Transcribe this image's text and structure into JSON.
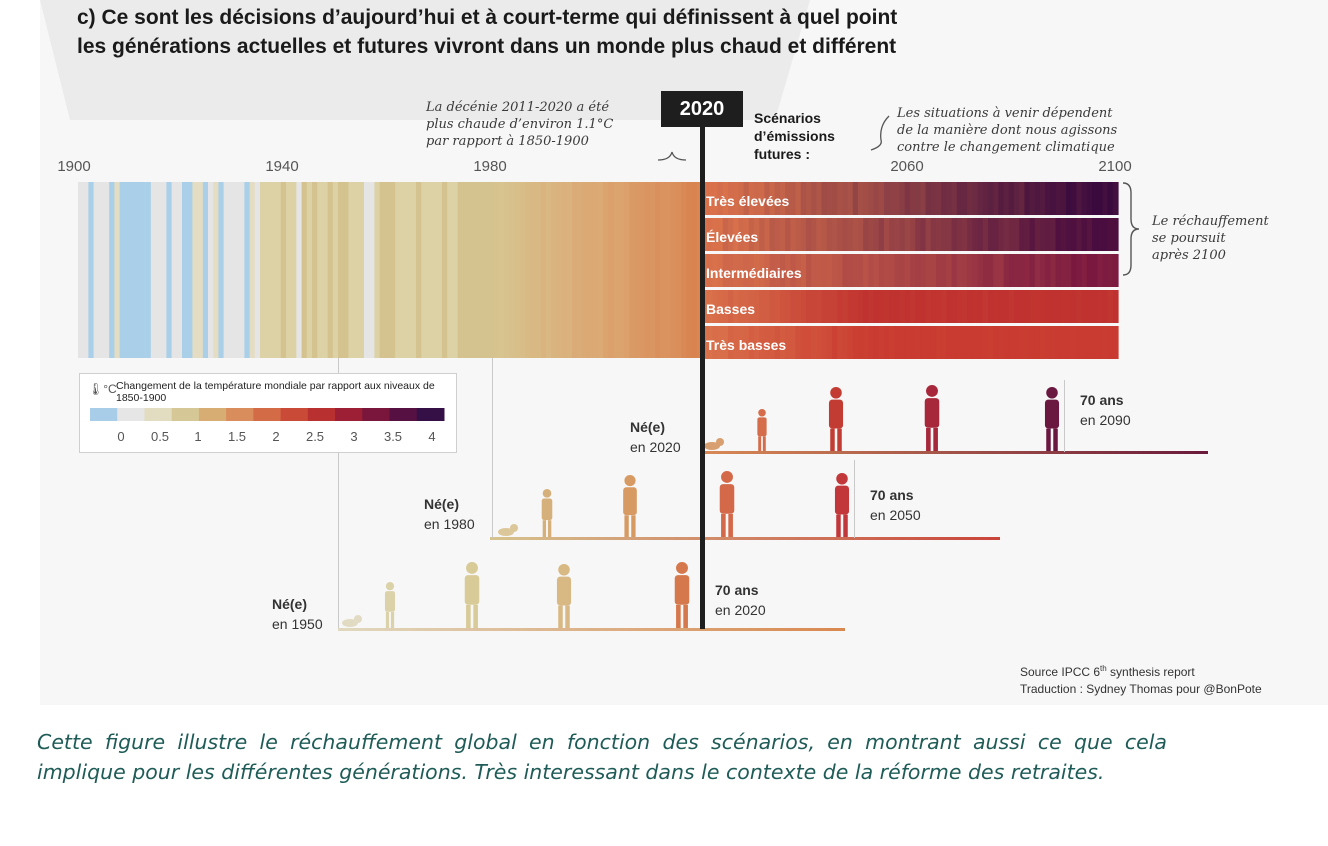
{
  "title": {
    "line1": "c) Ce sont les décisions d’aujourd’hui et à court-terme qui définissent à quel point",
    "line2": "les générations actuelles et futures vivront dans un monde plus chaud et différent"
  },
  "timeline": {
    "year_ticks": [
      "1900",
      "1940",
      "1980",
      "2060",
      "2100"
    ],
    "current_year": "2020"
  },
  "annotations": {
    "decade": [
      "La décénie 2011-2020 a été",
      "plus chaude d’environ 1.1°C",
      "par rapport à 1850-1900"
    ],
    "situations": [
      "Les situations à venir dépendent",
      "de la manière dont nous agissons",
      "contre le changement climatique"
    ],
    "warming": [
      "Le réchauffement",
      "se poursuit",
      "après 2100"
    ]
  },
  "scenarios": {
    "title": "Scénarios\nd’émissions\nfutures :",
    "items": [
      {
        "label": "Très élevées",
        "end_color": "#3a0a3e"
      },
      {
        "label": "Élevées",
        "end_color": "#4a0d3f"
      },
      {
        "label": "Intermédiaires",
        "end_color": "#7a1840"
      },
      {
        "label": "Basses",
        "end_color": "#c0322f"
      },
      {
        "label": "Très basses",
        "end_color": "#c93a30"
      }
    ]
  },
  "legend": {
    "icon": "thermometer-icon",
    "unit": "°C",
    "title": "Changement de la température mondiale par rapport aux niveaux de 1850-1900",
    "ticks": [
      "0",
      "0.5",
      "1",
      "1.5",
      "2",
      "2.5",
      "3",
      "3.5",
      "4"
    ],
    "colors": [
      "#a7cde8",
      "#e6e6e6",
      "#e2dcc1",
      "#d6c896",
      "#d8ad74",
      "#d98c5c",
      "#d36b47",
      "#c94a37",
      "#b8302f",
      "#9c1f35",
      "#7a153b",
      "#561041",
      "#351046"
    ]
  },
  "generations": [
    {
      "born": "Né(e)",
      "year": "en 2020",
      "age": "70 ans",
      "age_year": "en 2090"
    },
    {
      "born": "Né(e)",
      "year": "en 1980",
      "age": "70 ans",
      "age_year": "en 2050"
    },
    {
      "born": "Né(e)",
      "year": "en 1950",
      "age": "70 ans",
      "age_year": "en 2020"
    }
  ],
  "source": {
    "line1": "Source IPCC 6",
    "sup": "th",
    "line1_end": " synthesis report",
    "line2": "Traduction : Sydney Thomas pour @BonPote"
  },
  "caption": "Cette figure illustre le réchauffement global en fonction des scénarios, en montrant aussi ce que cela implique pour les différentes générations. Très interessant dans le contexte de la réforme des retraites."
}
